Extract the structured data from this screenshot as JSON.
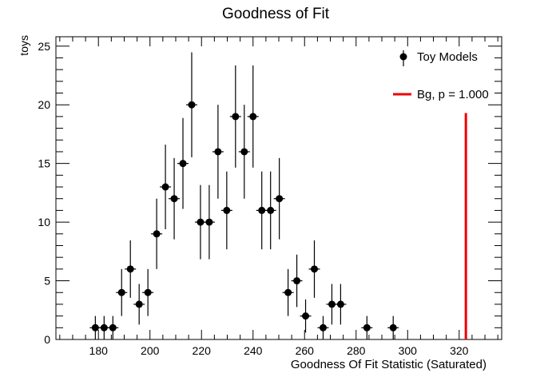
{
  "chart_data": {
    "type": "scatter",
    "title": "Goodness of Fit",
    "xlabel": "Goodness Of Fit Statistic (Saturated)",
    "ylabel": "toys",
    "xlim": [
      163.5,
      336.5
    ],
    "ylim": [
      0,
      25.8
    ],
    "x_ticks": [
      180,
      200,
      220,
      240,
      260,
      280,
      300,
      320
    ],
    "y_ticks": [
      0,
      5,
      10,
      15,
      20,
      25
    ],
    "series": [
      {
        "name": "Toy Models",
        "style": "points-with-errors",
        "color": "#000000",
        "points": [
          {
            "x": 178.8,
            "y": 1
          },
          {
            "x": 182.2,
            "y": 1
          },
          {
            "x": 185.6,
            "y": 1
          },
          {
            "x": 189.0,
            "y": 4
          },
          {
            "x": 192.4,
            "y": 6
          },
          {
            "x": 195.8,
            "y": 3
          },
          {
            "x": 199.2,
            "y": 4
          },
          {
            "x": 202.6,
            "y": 9
          },
          {
            "x": 206.0,
            "y": 13
          },
          {
            "x": 209.4,
            "y": 12
          },
          {
            "x": 212.8,
            "y": 15
          },
          {
            "x": 216.2,
            "y": 20
          },
          {
            "x": 219.6,
            "y": 10
          },
          {
            "x": 223.0,
            "y": 10
          },
          {
            "x": 226.4,
            "y": 16
          },
          {
            "x": 229.8,
            "y": 11
          },
          {
            "x": 233.2,
            "y": 19
          },
          {
            "x": 236.6,
            "y": 16
          },
          {
            "x": 240.0,
            "y": 19
          },
          {
            "x": 243.4,
            "y": 11
          },
          {
            "x": 246.8,
            "y": 11
          },
          {
            "x": 250.2,
            "y": 12
          },
          {
            "x": 253.6,
            "y": 4
          },
          {
            "x": 257.0,
            "y": 5
          },
          {
            "x": 260.4,
            "y": 2
          },
          {
            "x": 263.8,
            "y": 6
          },
          {
            "x": 267.2,
            "y": 1
          },
          {
            "x": 270.6,
            "y": 3
          },
          {
            "x": 274.0,
            "y": 3
          },
          {
            "x": 284.2,
            "y": 1
          },
          {
            "x": 294.4,
            "y": 1
          }
        ]
      },
      {
        "name": "Bg, p = 1.000",
        "style": "vertical-line",
        "color": "#ee0000",
        "x": 322.6,
        "y_top": 19.3
      }
    ],
    "legend": {
      "position": "top-right",
      "entries": [
        "Toy Models",
        "Bg, p = 1.000"
      ]
    },
    "grid": false
  }
}
